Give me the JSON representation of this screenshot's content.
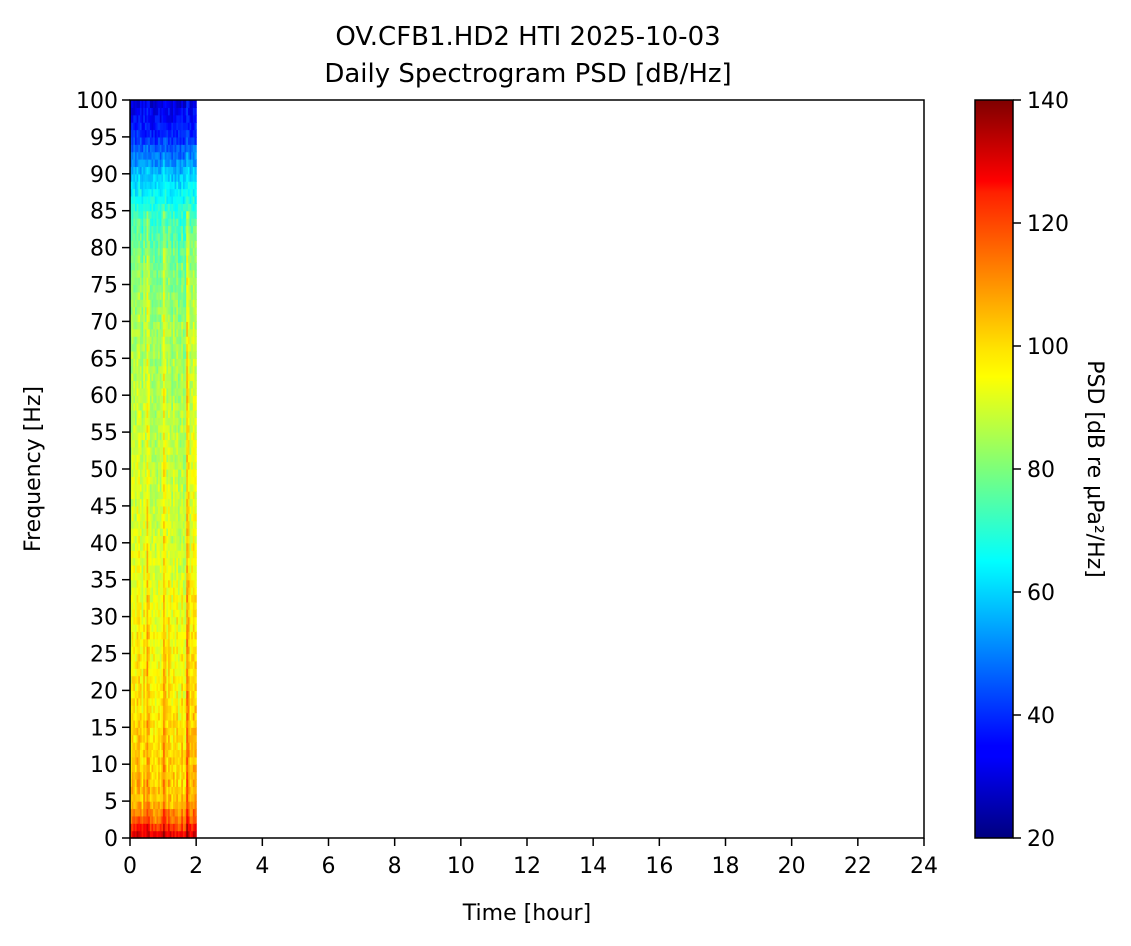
{
  "chart_data": {
    "type": "heatmap",
    "title_line1": "OV.CFB1.HD2 HTI 2025-10-03",
    "title_line2": "Daily Spectrogram PSD [dB/Hz]",
    "xlabel": "Time [hour]",
    "ylabel": "Frequency [Hz]",
    "colorbar_label": "PSD [dB re μPa²/Hz]",
    "colormap": "jet",
    "xlim": [
      0,
      24
    ],
    "ylim": [
      0,
      100
    ],
    "clim": [
      20,
      140
    ],
    "x_ticks": [
      0,
      2,
      4,
      6,
      8,
      10,
      12,
      14,
      16,
      18,
      20,
      22,
      24
    ],
    "y_ticks": [
      0,
      5,
      10,
      15,
      20,
      25,
      30,
      35,
      40,
      45,
      50,
      55,
      60,
      65,
      70,
      75,
      80,
      85,
      90,
      95,
      100
    ],
    "colorbar_ticks": [
      20,
      40,
      60,
      80,
      100,
      120,
      140
    ],
    "data_coverage_hours": [
      0,
      2
    ],
    "psd_profile": {
      "frequency_hz": [
        0,
        2.5,
        5,
        10,
        20,
        30,
        40,
        50,
        60,
        70,
        80,
        85,
        90,
        95,
        100
      ],
      "psd_db": [
        130,
        112,
        102,
        100,
        96,
        94,
        90,
        88,
        86,
        84,
        78,
        70,
        58,
        40,
        30
      ]
    },
    "bright_time_stripes_hours": [
      0.55,
      1.05,
      1.75
    ],
    "grid": false
  }
}
